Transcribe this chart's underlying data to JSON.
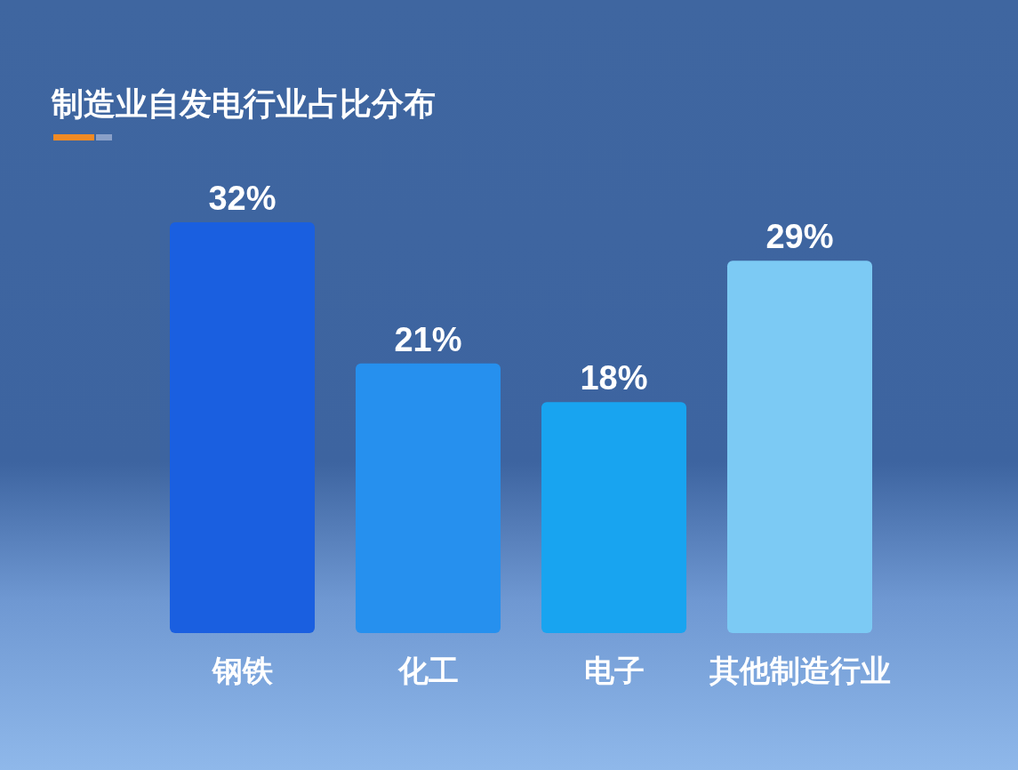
{
  "chart_data": {
    "type": "bar",
    "title": "制造业自发电行业占比分布",
    "categories": [
      "钢铁",
      "化工",
      "电子",
      "其他制造行业"
    ],
    "values": [
      32,
      21,
      18,
      29
    ],
    "colors": [
      "#1a5fe0",
      "#2690ee",
      "#18a4f0",
      "#7ccaf4"
    ],
    "value_labels": [
      "32%",
      "21%",
      "18%",
      "29%"
    ]
  }
}
